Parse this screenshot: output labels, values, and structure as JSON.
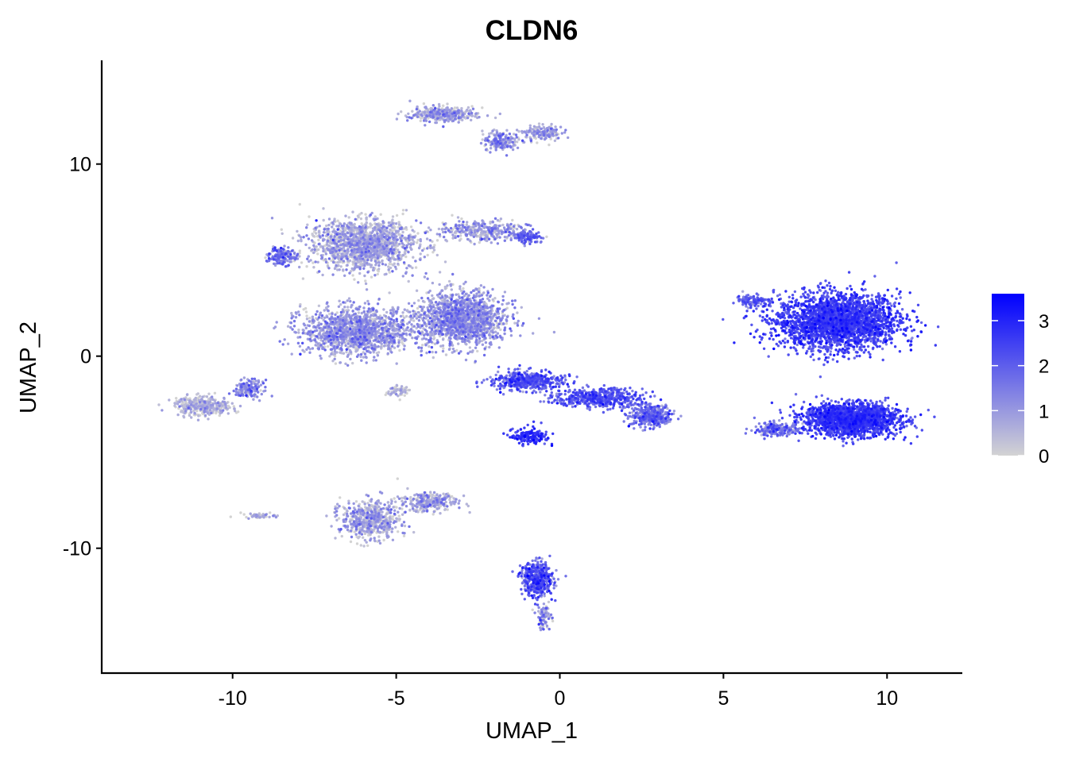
{
  "chart_data": {
    "type": "scatter",
    "title": "CLDN6",
    "xlabel": "UMAP_1",
    "ylabel": "UMAP_2",
    "xlim": [
      -14,
      12.3
    ],
    "ylim": [
      -16.5,
      15.4
    ],
    "xticks": [
      -10,
      -5,
      0,
      5,
      10
    ],
    "yticks": [
      -10,
      0,
      10
    ],
    "xtick_labels": [
      "-10",
      "-5",
      "0",
      "5",
      "10"
    ],
    "ytick_labels": [
      "-10",
      "0",
      "10"
    ],
    "grid": false,
    "color_scale": {
      "low_color": "#d3d3d3",
      "high_color": "#0000ff",
      "min": 0,
      "max": 3.6,
      "ticks": [
        0,
        1,
        2,
        3
      ],
      "tick_labels": [
        "0",
        "1",
        "2",
        "3"
      ]
    },
    "legend_position": "right",
    "clusters": [
      {
        "x": 8.5,
        "y": 1.8,
        "sx": 1.7,
        "sy": 1.3,
        "n": 2600,
        "expr": 2.35,
        "spread": 0.45
      },
      {
        "x": 8.9,
        "y": -3.3,
        "sx": 1.3,
        "sy": 0.75,
        "n": 2000,
        "expr": 2.4,
        "spread": 0.4
      },
      {
        "x": 5.9,
        "y": 2.9,
        "sx": 0.5,
        "sy": 0.3,
        "n": 120,
        "expr": 1.8,
        "spread": 0.5
      },
      {
        "x": 6.6,
        "y": -3.8,
        "sx": 0.6,
        "sy": 0.3,
        "n": 180,
        "expr": 1.5,
        "spread": 0.6
      },
      {
        "x": -3.0,
        "y": 1.9,
        "sx": 1.2,
        "sy": 1.3,
        "n": 1500,
        "expr": 0.9,
        "spread": 0.55
      },
      {
        "x": -6.2,
        "y": 1.3,
        "sx": 1.5,
        "sy": 1.1,
        "n": 1400,
        "expr": 0.85,
        "spread": 0.55
      },
      {
        "x": -6.0,
        "y": 5.8,
        "sx": 1.5,
        "sy": 1.2,
        "n": 1500,
        "expr": 0.55,
        "spread": 0.55
      },
      {
        "x": -8.5,
        "y": 5.2,
        "sx": 0.4,
        "sy": 0.4,
        "n": 150,
        "expr": 1.4,
        "spread": 0.6
      },
      {
        "x": -2.4,
        "y": 6.5,
        "sx": 1.3,
        "sy": 0.5,
        "n": 350,
        "expr": 0.8,
        "spread": 0.6
      },
      {
        "x": -1.0,
        "y": 6.2,
        "sx": 0.4,
        "sy": 0.25,
        "n": 100,
        "expr": 1.8,
        "spread": 0.5
      },
      {
        "x": -3.6,
        "y": 12.6,
        "sx": 0.9,
        "sy": 0.35,
        "n": 350,
        "expr": 0.65,
        "spread": 0.6
      },
      {
        "x": -1.8,
        "y": 11.2,
        "sx": 0.5,
        "sy": 0.45,
        "n": 180,
        "expr": 0.9,
        "spread": 0.6
      },
      {
        "x": -0.5,
        "y": 11.6,
        "sx": 0.5,
        "sy": 0.35,
        "n": 160,
        "expr": 0.7,
        "spread": 0.6
      },
      {
        "x": -1.0,
        "y": -1.3,
        "sx": 1.0,
        "sy": 0.45,
        "n": 450,
        "expr": 2.0,
        "spread": 0.5
      },
      {
        "x": 1.2,
        "y": -2.2,
        "sx": 1.2,
        "sy": 0.45,
        "n": 500,
        "expr": 1.95,
        "spread": 0.5
      },
      {
        "x": 2.8,
        "y": -3.1,
        "sx": 0.6,
        "sy": 0.5,
        "n": 350,
        "expr": 1.6,
        "spread": 0.55
      },
      {
        "x": -0.9,
        "y": -4.2,
        "sx": 0.5,
        "sy": 0.4,
        "n": 160,
        "expr": 2.6,
        "spread": 0.4
      },
      {
        "x": -10.9,
        "y": -2.6,
        "sx": 0.8,
        "sy": 0.45,
        "n": 350,
        "expr": 0.35,
        "spread": 0.5
      },
      {
        "x": -9.5,
        "y": -1.7,
        "sx": 0.4,
        "sy": 0.4,
        "n": 150,
        "expr": 1.1,
        "spread": 0.6
      },
      {
        "x": -5.8,
        "y": -8.5,
        "sx": 0.8,
        "sy": 0.9,
        "n": 600,
        "expr": 0.55,
        "spread": 0.6
      },
      {
        "x": -4.0,
        "y": -7.6,
        "sx": 0.8,
        "sy": 0.45,
        "n": 300,
        "expr": 0.6,
        "spread": 0.6
      },
      {
        "x": -0.7,
        "y": -11.6,
        "sx": 0.45,
        "sy": 0.8,
        "n": 450,
        "expr": 1.9,
        "spread": 0.6
      },
      {
        "x": -0.5,
        "y": -13.6,
        "sx": 0.2,
        "sy": 0.6,
        "n": 80,
        "expr": 1.0,
        "spread": 0.7
      },
      {
        "x": -9.2,
        "y": -8.3,
        "sx": 0.5,
        "sy": 0.12,
        "n": 50,
        "expr": 0.4,
        "spread": 0.5
      },
      {
        "x": -4.9,
        "y": -1.8,
        "sx": 0.3,
        "sy": 0.3,
        "n": 60,
        "expr": 0.3,
        "spread": 0.4
      }
    ]
  }
}
